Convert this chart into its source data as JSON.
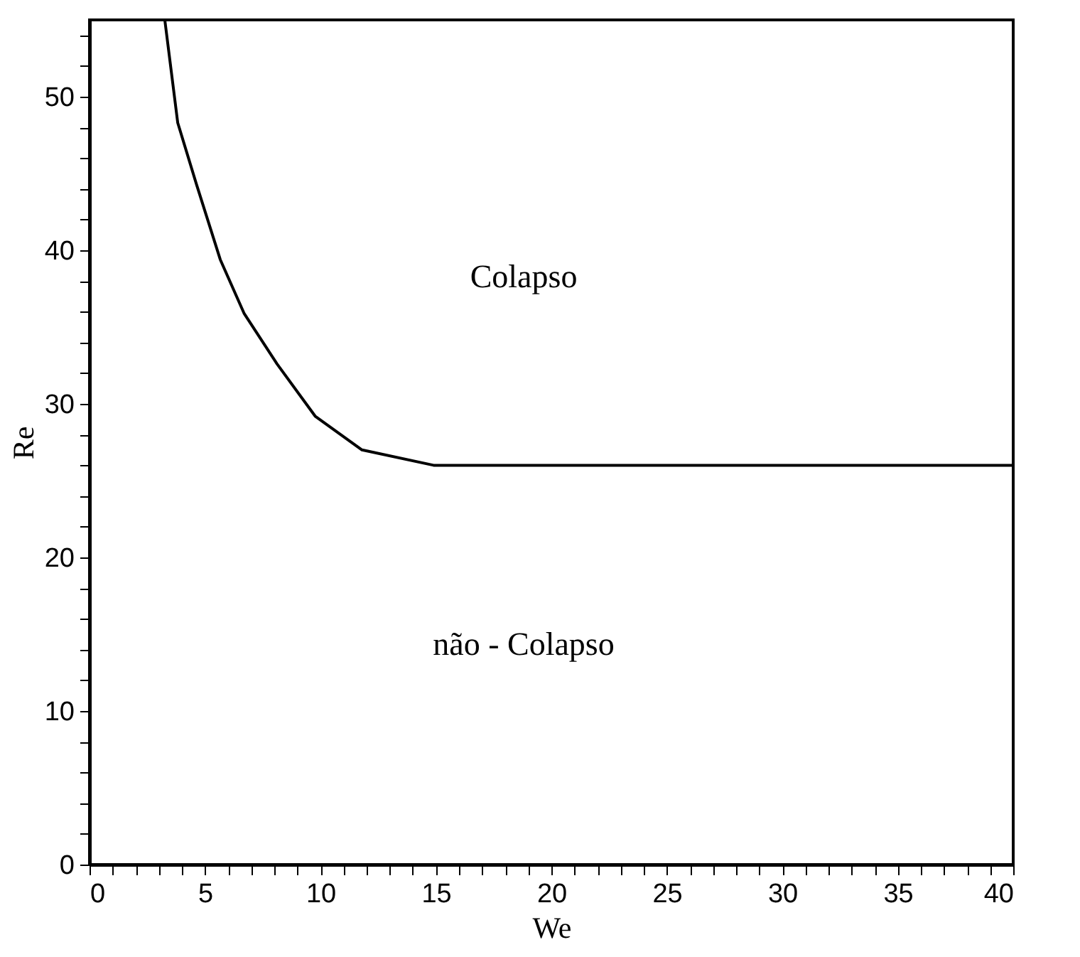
{
  "chart_data": {
    "type": "line",
    "xlabel": "We",
    "ylabel": "Re",
    "x": [
      3.26,
      3.82,
      4.63,
      5.66,
      6.69,
      8.12,
      9.77,
      11.8,
      14.9,
      40
    ],
    "series": [
      {
        "color": "#000000",
        "values": [
          55,
          48.3,
          44.3,
          39.4,
          35.9,
          32.6,
          29.2,
          27.0,
          26.0,
          26.0
        ]
      }
    ],
    "xlim": [
      0,
      40
    ],
    "ylim": [
      0,
      55
    ],
    "xticks": [
      0,
      {
        "value": 1,
        "label": null
      },
      {
        "value": 2,
        "label": null
      },
      {
        "value": 3,
        "label": null
      },
      {
        "value": 4,
        "label": null
      },
      5,
      {
        "value": 6,
        "label": null
      },
      {
        "value": 7,
        "label": null
      },
      {
        "value": 8,
        "label": null
      },
      {
        "value": 9,
        "label": null
      },
      10,
      {
        "value": 11,
        "label": null
      },
      {
        "value": 12,
        "label": null
      },
      {
        "value": 13,
        "label": null
      },
      {
        "value": 14,
        "label": null
      },
      15,
      {
        "value": 16,
        "label": null
      },
      {
        "value": 17,
        "label": null
      },
      {
        "value": 18,
        "label": null
      },
      {
        "value": 19,
        "label": null
      },
      20,
      {
        "value": 21,
        "label": null
      },
      {
        "value": 22,
        "label": null
      },
      {
        "value": 23,
        "label": null
      },
      {
        "value": 24,
        "label": null
      },
      25,
      {
        "value": 26,
        "label": null
      },
      {
        "value": 27,
        "label": null
      },
      {
        "value": 28,
        "label": null
      },
      {
        "value": 29,
        "label": null
      },
      30,
      {
        "value": 31,
        "label": null
      },
      {
        "value": 32,
        "label": null
      },
      {
        "value": 33,
        "label": null
      },
      {
        "value": 34,
        "label": null
      },
      35,
      {
        "value": 36,
        "label": null
      },
      {
        "value": 37,
        "label": null
      },
      {
        "value": 38,
        "label": null
      },
      {
        "value": 39,
        "label": null
      },
      40
    ],
    "yticks": [
      0,
      {
        "value": 2,
        "label": null
      },
      {
        "value": 4,
        "label": null
      },
      {
        "value": 6,
        "label": null
      },
      {
        "value": 8,
        "label": null
      },
      10,
      {
        "value": 12,
        "label": null
      },
      {
        "value": 14,
        "label": null
      },
      {
        "value": 16,
        "label": null
      },
      {
        "value": 18,
        "label": null
      },
      20,
      {
        "value": 22,
        "label": null
      },
      {
        "value": 24,
        "label": null
      },
      {
        "value": 26,
        "label": null
      },
      {
        "value": 28,
        "label": null
      },
      30,
      {
        "value": 32,
        "label": null
      },
      {
        "value": 34,
        "label": null
      },
      {
        "value": 36,
        "label": null
      },
      {
        "value": 38,
        "label": null
      },
      40,
      {
        "value": 42,
        "label": null
      },
      {
        "value": 44,
        "label": null
      },
      {
        "value": 46,
        "label": null
      },
      {
        "value": 48,
        "label": null
      },
      50,
      {
        "value": 52,
        "label": null
      },
      {
        "value": 54,
        "label": null
      }
    ],
    "annotations": [
      "Colapso",
      "não - Colapso"
    ],
    "grid": false,
    "marker": "none",
    "line_style": "solid"
  }
}
